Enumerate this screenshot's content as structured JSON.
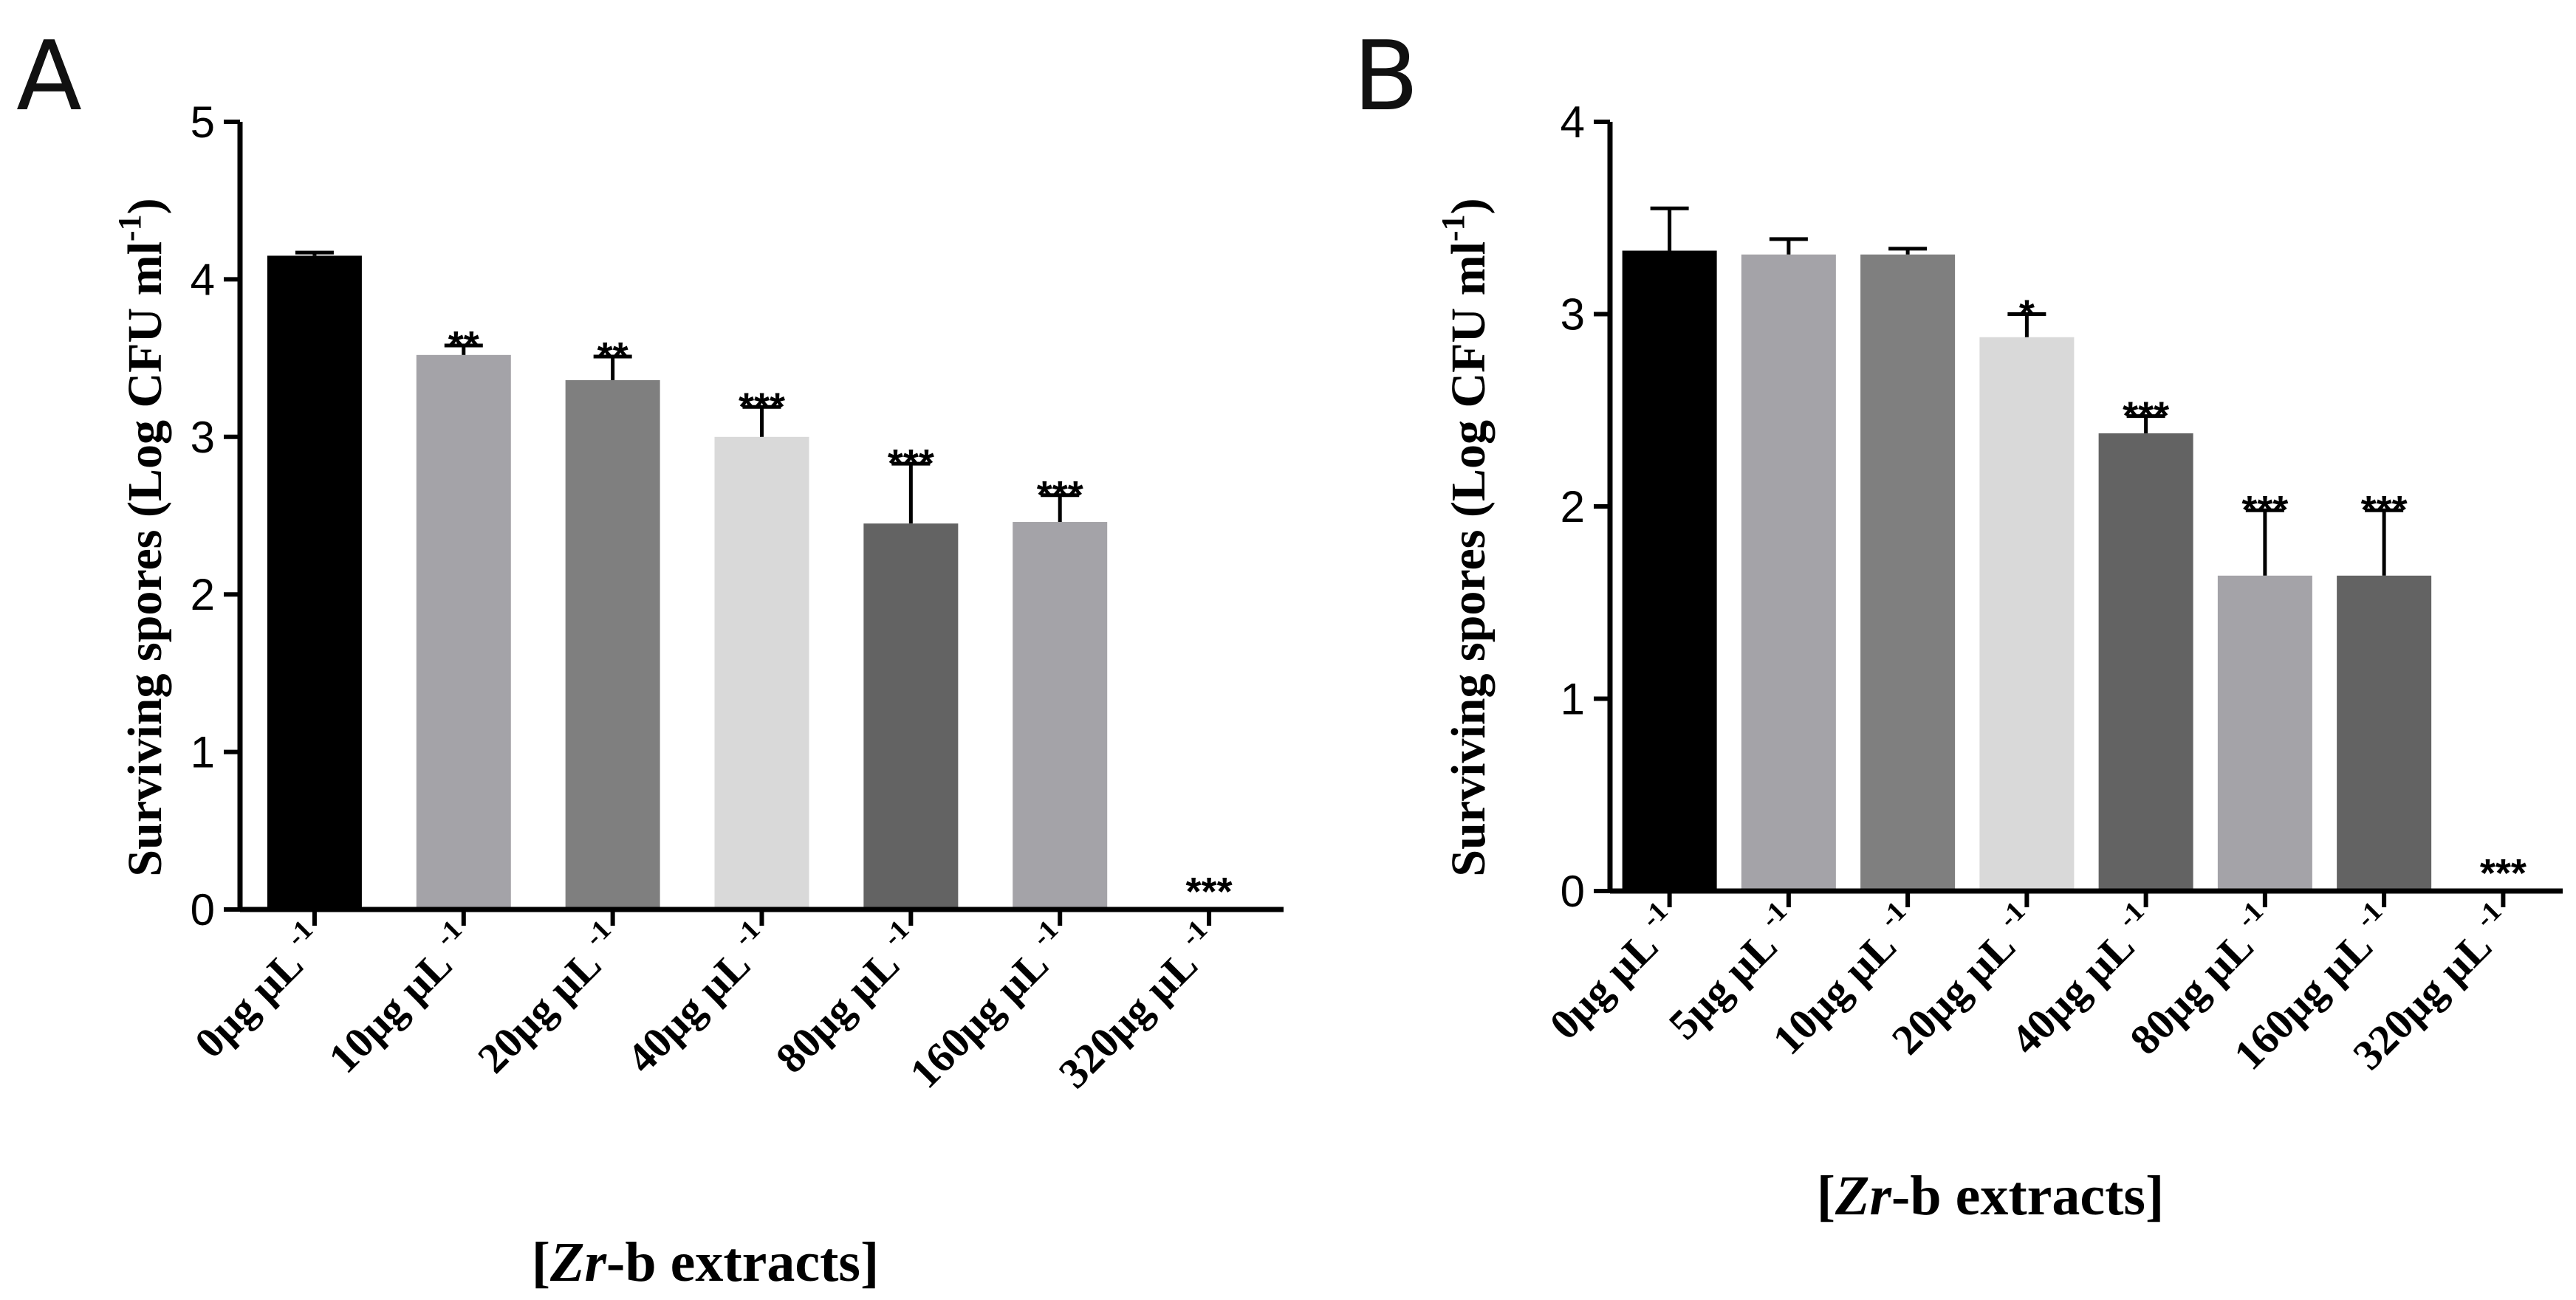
{
  "chart_data": [
    {
      "panel": "A",
      "type": "bar",
      "categories": [
        "0µg µL",
        "10µg µL",
        "20µg µL",
        "40µg µL",
        "80µg µL",
        "160µg µL",
        "320µg µL"
      ],
      "category_superscript": "-1",
      "values": [
        4.15,
        3.52,
        3.36,
        3.0,
        2.45,
        2.46,
        0
      ],
      "errors": [
        0.02,
        0.06,
        0.15,
        0.19,
        0.38,
        0.17,
        0
      ],
      "significance": [
        "",
        "**",
        "**",
        "***",
        "***",
        "***",
        "***"
      ],
      "colors": [
        "#000000",
        "#a4a3a8",
        "#7f7f7f",
        "#d9d9d9",
        "#636363",
        "#a4a3a8",
        "#636363"
      ],
      "ylabel": "Surviving spores (Log CFU ml",
      "ylabel_superscript": "-1",
      "ylabel_close": ")",
      "xlabel_italic": "Zr",
      "xlabel_rest": "-b extracts",
      "yticks": [
        0,
        1,
        2,
        3,
        4,
        5
      ],
      "ylim": [
        0,
        5
      ]
    },
    {
      "panel": "B",
      "type": "bar",
      "categories": [
        "0µg µL",
        "5µg µL",
        "10µg µL",
        "20µg µL",
        "40µg µL",
        "80µg µL",
        "160µg µL",
        "320µg µL"
      ],
      "category_superscript": "-1",
      "values": [
        3.33,
        3.31,
        3.31,
        2.88,
        2.38,
        1.64,
        1.64,
        0
      ],
      "errors": [
        0.22,
        0.08,
        0.03,
        0.12,
        0.09,
        0.34,
        0.34,
        0
      ],
      "significance": [
        "",
        "",
        "",
        "*",
        "***",
        "***",
        "***",
        "***"
      ],
      "colors": [
        "#000000",
        "#a4a3a8",
        "#7f7f7f",
        "#d9d9d9",
        "#636363",
        "#a4a3a8",
        "#636363",
        "#636363"
      ],
      "ylabel": "Surviving spores (Log CFU ml",
      "ylabel_superscript": "-1",
      "ylabel_close": ")",
      "xlabel_italic": "Zr",
      "xlabel_rest": "-b extracts",
      "yticks": [
        0,
        1,
        2,
        3,
        4
      ],
      "ylim": [
        0,
        4
      ]
    }
  ]
}
